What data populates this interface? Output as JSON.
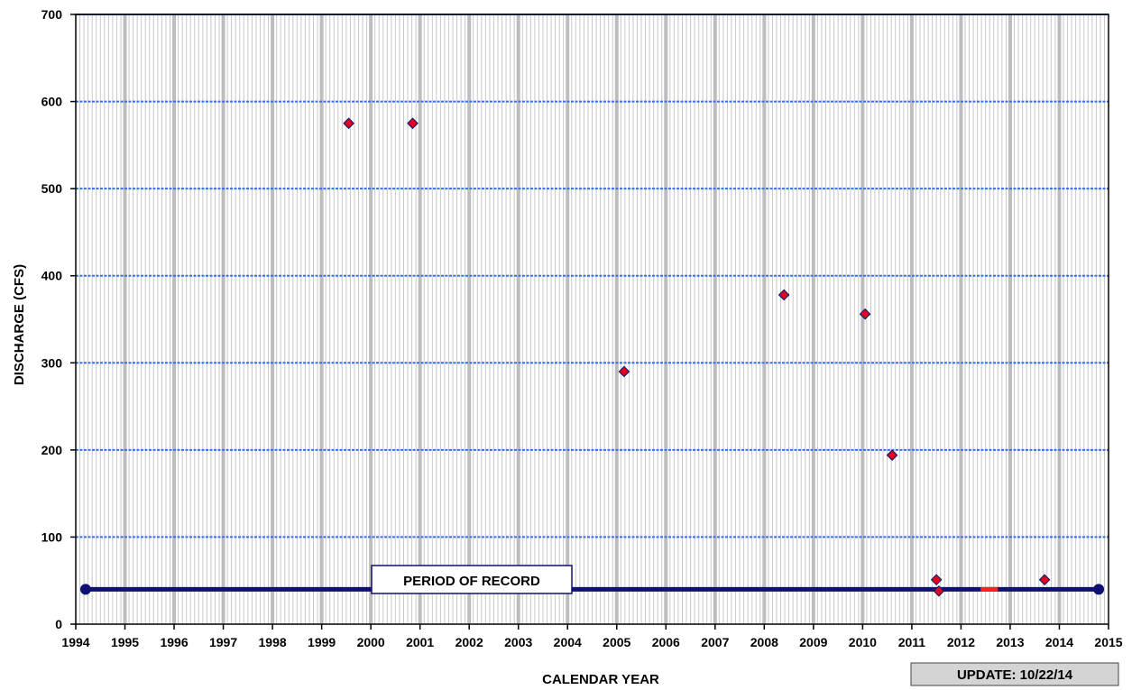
{
  "chart_data": {
    "type": "scatter",
    "title": "",
    "xlabel": "CALENDAR YEAR",
    "ylabel": "DISCHARGE  (CFS)",
    "xlim": [
      1994,
      2015
    ],
    "ylim": [
      0,
      700
    ],
    "x_ticks": [
      "1994",
      "1995",
      "1996",
      "1997",
      "1998",
      "1999",
      "2000",
      "2001",
      "2002",
      "2003",
      "2004",
      "2005",
      "2006",
      "2007",
      "2008",
      "2009",
      "2010",
      "2011",
      "2012",
      "2013",
      "2014",
      "2015"
    ],
    "y_ticks": [
      "0",
      "100",
      "200",
      "300",
      "400",
      "500",
      "600",
      "700"
    ],
    "grid": true,
    "series": [
      {
        "x": [
          1999.55,
          2000.85,
          2005.15,
          2008.4,
          2010.05,
          2010.6,
          2011.5,
          2011.55,
          2013.7
        ],
        "y": [
          575,
          575,
          290,
          378,
          356,
          194,
          51,
          38,
          51
        ]
      }
    ],
    "period_of_record": {
      "label": "PERIOD OF RECORD",
      "start": 1994.2,
      "end": 2014.8,
      "y": 40,
      "gap": [
        2012.4,
        2012.75
      ]
    },
    "update_label": "UPDATE:  10/22/14",
    "colors": {
      "marker": "#e8001c",
      "marker_edge": "#1a1a6e",
      "record_line": "#101070",
      "record_gap": "#ff2020",
      "grid_major_h": "#3a6ee8",
      "grid_major_v": "#bdbdbd",
      "grid_minor": "#c8c8c8",
      "update_box": "#d4d4d4"
    }
  }
}
